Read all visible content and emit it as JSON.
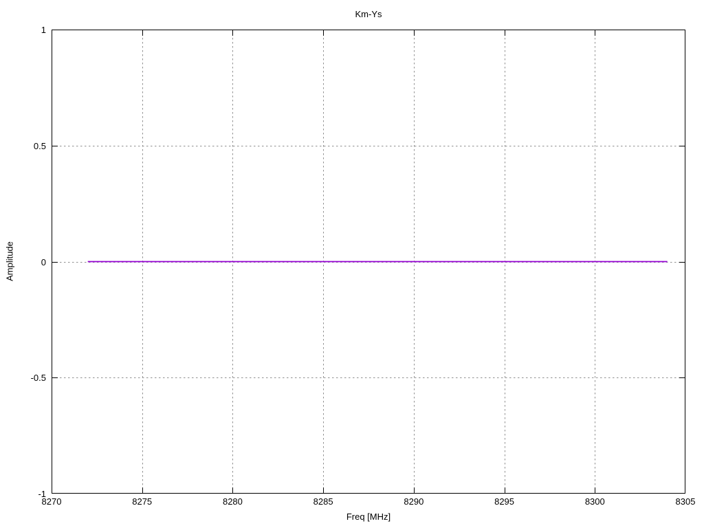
{
  "chart_data": {
    "type": "line",
    "title": "Km-Ys",
    "xlabel": "Freq [MHz]",
    "ylabel": "Amplitude",
    "xlim": [
      8270,
      8305
    ],
    "ylim": [
      -1,
      1
    ],
    "x_ticks": [
      8270,
      8275,
      8280,
      8285,
      8290,
      8295,
      8300,
      8305
    ],
    "y_ticks": [
      -1,
      -0.5,
      0,
      0.5,
      1
    ],
    "grid": true,
    "legend": "none",
    "series": [
      {
        "name": "Km-Ys",
        "color": "#9400d3",
        "x": [
          8272,
          8304
        ],
        "y": [
          0,
          0
        ]
      }
    ]
  },
  "style": {
    "background": "#ffffff",
    "axis_color": "#000000",
    "grid_color": "#909090",
    "text_color": "#000000"
  }
}
